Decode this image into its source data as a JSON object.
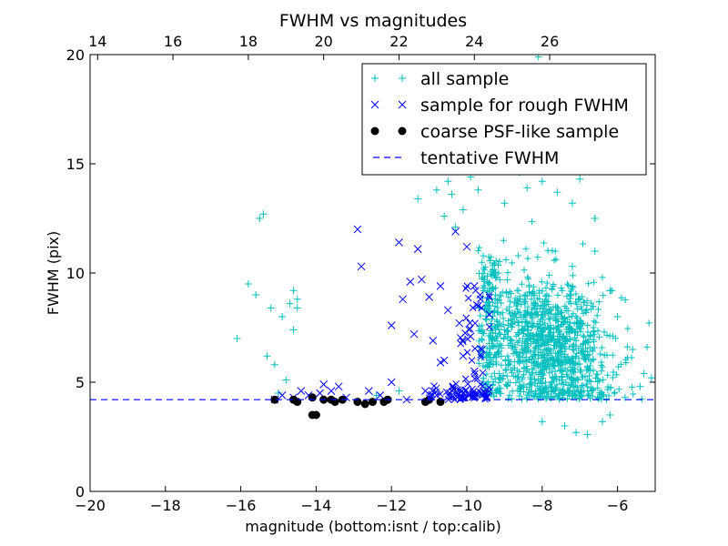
{
  "chart_data": {
    "type": "scatter",
    "title": "FWHM vs magnitudes",
    "xlabel": "magnitude (bottom:isnt / top:calib)",
    "ylabel": "FWHM (pix)",
    "xlim": [
      -20,
      -5
    ],
    "ylim": [
      0,
      20
    ],
    "x_ticks": [
      -20,
      -18,
      -16,
      -14,
      -12,
      -10,
      -8,
      -6
    ],
    "x_tick_labels": [
      "−20",
      "−18",
      "−16",
      "−14",
      "−12",
      "−10",
      "−8",
      "−6"
    ],
    "y_ticks": [
      0,
      5,
      10,
      15,
      20
    ],
    "y_tick_labels": [
      "0",
      "5",
      "10",
      "15",
      "20"
    ],
    "top_axis": {
      "ticks": [
        14,
        16,
        18,
        20,
        22,
        24,
        26
      ],
      "tick_labels": [
        "14",
        "16",
        "18",
        "20",
        "22",
        "24",
        "26"
      ],
      "offset": 33.8
    },
    "grid": false,
    "legend_position": "top-right",
    "colors": {
      "all_sample": "#00bfbf",
      "rough_sample": "#0000ff",
      "psf_sample": "#000000",
      "tentative": "#0000ff"
    },
    "tentative_fwhm": 4.2,
    "series": [
      {
        "name": "all sample",
        "marker": "plus",
        "points": [
          [
            -16.1,
            7.0
          ],
          [
            -15.8,
            9.5
          ],
          [
            -15.6,
            9.0
          ],
          [
            -15.5,
            12.5
          ],
          [
            -15.4,
            12.7
          ],
          [
            -15.3,
            6.2
          ],
          [
            -15.2,
            8.4
          ],
          [
            -15.1,
            5.8
          ],
          [
            -15.0,
            4.5
          ],
          [
            -14.9,
            8.0
          ],
          [
            -14.8,
            5.1
          ],
          [
            -14.7,
            8.6
          ],
          [
            -14.6,
            9.2
          ],
          [
            -14.6,
            7.4
          ],
          [
            -14.5,
            8.8
          ],
          [
            -14.5,
            8.4
          ],
          [
            -12.4,
            4.4
          ],
          [
            -11.8,
            4.6
          ],
          [
            -11.3,
            13.4
          ],
          [
            -10.8,
            13.8
          ],
          [
            -10.6,
            12.6
          ],
          [
            -10.5,
            14.2
          ],
          [
            -10.4,
            13.6
          ],
          [
            -10.3,
            12.1
          ],
          [
            -10.1,
            12.9
          ],
          [
            -9.9,
            14.4
          ],
          [
            -9.7,
            13.8
          ],
          [
            -9.5,
            16.6
          ],
          [
            -9.4,
            14.8
          ],
          [
            -9.2,
            15.2
          ],
          [
            -9.0,
            13.2
          ],
          [
            -8.8,
            16.2
          ],
          [
            -8.6,
            14.6
          ],
          [
            -8.4,
            13.9
          ],
          [
            -8.2,
            16.6
          ],
          [
            -8.0,
            14.2
          ],
          [
            -7.8,
            15.8
          ],
          [
            -7.6,
            13.7
          ],
          [
            -7.4,
            14.8
          ],
          [
            -7.2,
            13.2
          ],
          [
            -8.1,
            19.9
          ],
          [
            -7.7,
            17.0
          ],
          [
            -7.0,
            14.3
          ],
          [
            -6.6,
            12.5
          ],
          [
            -6.6,
            11.0
          ],
          [
            -6.2,
            9.2
          ],
          [
            -6.0,
            8.0
          ],
          [
            -5.6,
            6.5
          ],
          [
            -5.3,
            5.4
          ],
          [
            -5.1,
            5.2
          ],
          [
            -5.4,
            4.8
          ],
          [
            -5.8,
            4.3
          ],
          [
            -6.2,
            3.5
          ],
          [
            -6.4,
            3.2
          ],
          [
            -6.8,
            2.6
          ],
          [
            -7.1,
            2.7
          ],
          [
            -7.4,
            3.0
          ],
          [
            -8.0,
            3.2
          ],
          [
            -6.6,
            12.5
          ],
          [
            -7.2,
            10.3
          ]
        ]
      },
      {
        "name": "sample for rough FWHM",
        "marker": "x",
        "points": [
          [
            -15.1,
            4.2
          ],
          [
            -14.9,
            4.4
          ],
          [
            -14.6,
            4.3
          ],
          [
            -14.4,
            4.6
          ],
          [
            -14.2,
            4.4
          ],
          [
            -13.9,
            4.5
          ],
          [
            -13.8,
            4.9
          ],
          [
            -13.6,
            4.6
          ],
          [
            -13.4,
            4.8
          ],
          [
            -13.2,
            4.3
          ],
          [
            -12.9,
            12.0
          ],
          [
            -12.8,
            10.3
          ],
          [
            -12.6,
            4.6
          ],
          [
            -12.3,
            4.4
          ],
          [
            -12.0,
            7.6
          ],
          [
            -12.0,
            5.0
          ],
          [
            -11.8,
            11.4
          ],
          [
            -11.7,
            8.8
          ],
          [
            -11.6,
            4.2
          ],
          [
            -11.5,
            9.6
          ],
          [
            -11.4,
            7.2
          ],
          [
            -11.3,
            11.1
          ],
          [
            -11.2,
            9.7
          ],
          [
            -11.1,
            4.6
          ],
          [
            -11.0,
            8.9
          ],
          [
            -10.9,
            6.9
          ],
          [
            -10.8,
            4.4
          ],
          [
            -10.7,
            9.4
          ],
          [
            -10.6,
            6.0
          ],
          [
            -10.5,
            8.3
          ],
          [
            -10.4,
            4.4
          ],
          [
            -10.3,
            11.9
          ],
          [
            -10.2,
            7.7
          ],
          [
            -10.1,
            4.3
          ],
          [
            -10.0,
            11.2
          ],
          [
            -9.9,
            7.1
          ],
          [
            -9.8,
            9.4
          ],
          [
            -9.7,
            8.5
          ],
          [
            -9.6,
            6.5
          ],
          [
            -9.5,
            4.3
          ],
          [
            -9.4,
            8.1
          ],
          [
            -9.6,
            4.5
          ],
          [
            -9.8,
            5.5
          ],
          [
            -10.1,
            6.2
          ],
          [
            -10.7,
            5.9
          ]
        ]
      },
      {
        "name": "coarse PSF-like sample",
        "marker": "circle",
        "points": [
          [
            -15.1,
            4.2
          ],
          [
            -14.6,
            4.2
          ],
          [
            -14.5,
            4.1
          ],
          [
            -14.1,
            4.3
          ],
          [
            -14.1,
            3.5
          ],
          [
            -14.0,
            3.5
          ],
          [
            -13.8,
            4.2
          ],
          [
            -13.6,
            4.2
          ],
          [
            -13.5,
            4.1
          ],
          [
            -13.3,
            4.2
          ],
          [
            -12.9,
            4.1
          ],
          [
            -12.7,
            4.0
          ],
          [
            -12.5,
            4.1
          ],
          [
            -12.2,
            4.1
          ],
          [
            -12.1,
            4.2
          ],
          [
            -11.1,
            4.1
          ],
          [
            -11.0,
            4.2
          ],
          [
            -10.7,
            4.1
          ]
        ]
      }
    ],
    "legend": {
      "entries": [
        {
          "label": "all sample",
          "series": "all_sample"
        },
        {
          "label": "sample for rough FWHM",
          "series": "rough_sample"
        },
        {
          "label": "coarse PSF-like sample",
          "series": "psf_sample"
        },
        {
          "label": "tentative FWHM",
          "series": "tentative"
        }
      ]
    }
  }
}
